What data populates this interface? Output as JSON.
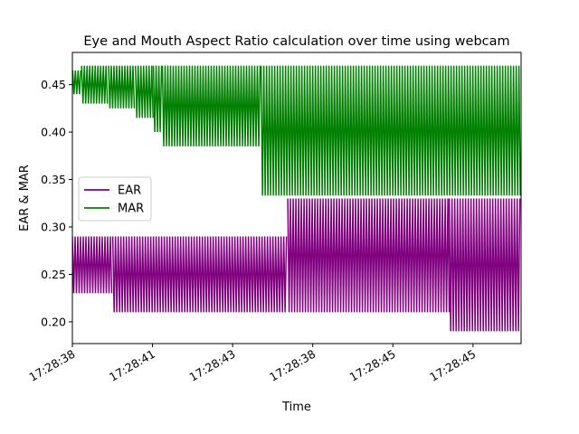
{
  "chart_data": {
    "type": "line",
    "title": "Eye and Mouth Aspect Ratio calculation over time using webcam",
    "xlabel": "Time",
    "ylabel": "EAR & MAR",
    "ylim": [
      0.177,
      0.484
    ],
    "yticks": [
      0.2,
      0.25,
      0.3,
      0.35,
      0.4,
      0.45
    ],
    "ytick_labels": [
      "0.20",
      "0.25",
      "0.30",
      "0.35",
      "0.40",
      "0.45"
    ],
    "xtick_labels": [
      "17:28:38",
      "17:28:41",
      "17:28:43",
      "17:28:38",
      "17:28:45",
      "17:28:45"
    ],
    "grid": false,
    "legend_position": "center-left",
    "series": [
      {
        "name": "EAR",
        "color": "#800080",
        "segments": [
          {
            "start": 0.0,
            "end": 0.09,
            "low": 0.23,
            "high": 0.29
          },
          {
            "start": 0.09,
            "end": 0.48,
            "low": 0.21,
            "high": 0.29
          },
          {
            "start": 0.48,
            "end": 0.84,
            "low": 0.21,
            "high": 0.33
          },
          {
            "start": 0.84,
            "end": 1.0,
            "low": 0.19,
            "high": 0.33
          }
        ]
      },
      {
        "name": "MAR",
        "color": "#008000",
        "segments": [
          {
            "start": 0.0,
            "end": 0.02,
            "low": 0.44,
            "high": 0.465
          },
          {
            "start": 0.02,
            "end": 0.08,
            "low": 0.43,
            "high": 0.47
          },
          {
            "start": 0.08,
            "end": 0.14,
            "low": 0.425,
            "high": 0.47
          },
          {
            "start": 0.14,
            "end": 0.18,
            "low": 0.415,
            "high": 0.47
          },
          {
            "start": 0.18,
            "end": 0.2,
            "low": 0.4,
            "high": 0.47
          },
          {
            "start": 0.2,
            "end": 0.42,
            "low": 0.385,
            "high": 0.47
          },
          {
            "start": 0.42,
            "end": 1.0,
            "low": 0.333,
            "high": 0.47
          }
        ]
      }
    ]
  }
}
